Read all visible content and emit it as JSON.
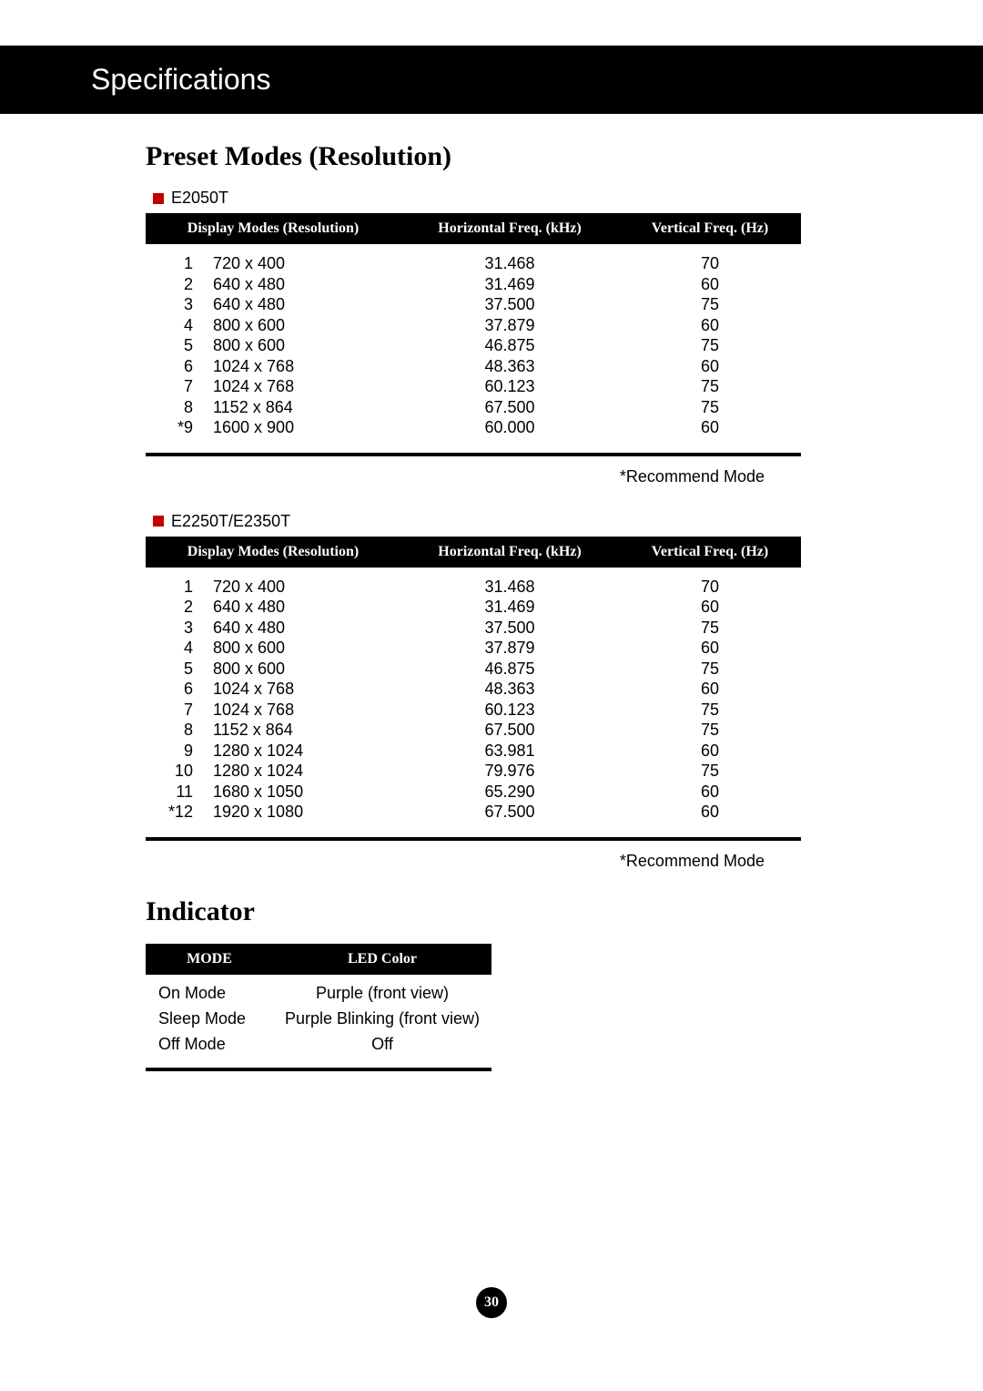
{
  "header": {
    "title": "Specifications"
  },
  "preset_modes": {
    "heading": "Preset Modes (Resolution)",
    "recommend_note": "*Recommend Mode",
    "columns": {
      "display": "Display Modes (Resolution)",
      "hfreq": "Horizontal Freq. (kHz)",
      "vfreq": "Vertical Freq. (Hz)"
    },
    "tables": [
      {
        "model": "E2050T",
        "rows": [
          {
            "idx": "1",
            "res": "720 x 400",
            "hfreq": "31.468",
            "vfreq": "70"
          },
          {
            "idx": "2",
            "res": "640 x 480",
            "hfreq": "31.469",
            "vfreq": "60"
          },
          {
            "idx": "3",
            "res": "640 x 480",
            "hfreq": "37.500",
            "vfreq": "75"
          },
          {
            "idx": "4",
            "res": "800 x 600",
            "hfreq": "37.879",
            "vfreq": "60"
          },
          {
            "idx": "5",
            "res": "800 x 600",
            "hfreq": "46.875",
            "vfreq": "75"
          },
          {
            "idx": "6",
            "res": "1024 x 768",
            "hfreq": "48.363",
            "vfreq": "60"
          },
          {
            "idx": "7",
            "res": "1024 x 768",
            "hfreq": "60.123",
            "vfreq": "75"
          },
          {
            "idx": "8",
            "res": "1152 x 864",
            "hfreq": "67.500",
            "vfreq": "75"
          },
          {
            "idx": "*9",
            "res": "1600 x 900",
            "hfreq": "60.000",
            "vfreq": "60"
          }
        ]
      },
      {
        "model": "E2250T/E2350T",
        "rows": [
          {
            "idx": "1",
            "res": "720 x 400",
            "hfreq": "31.468",
            "vfreq": "70"
          },
          {
            "idx": "2",
            "res": "640 x 480",
            "hfreq": "31.469",
            "vfreq": "60"
          },
          {
            "idx": "3",
            "res": "640 x 480",
            "hfreq": "37.500",
            "vfreq": "75"
          },
          {
            "idx": "4",
            "res": "800 x 600",
            "hfreq": "37.879",
            "vfreq": "60"
          },
          {
            "idx": "5",
            "res": "800 x 600",
            "hfreq": "46.875",
            "vfreq": "75"
          },
          {
            "idx": "6",
            "res": "1024 x 768",
            "hfreq": "48.363",
            "vfreq": "60"
          },
          {
            "idx": "7",
            "res": "1024 x 768",
            "hfreq": "60.123",
            "vfreq": "75"
          },
          {
            "idx": "8",
            "res": "1152 x 864",
            "hfreq": "67.500",
            "vfreq": "75"
          },
          {
            "idx": "9",
            "res": "1280 x 1024",
            "hfreq": "63.981",
            "vfreq": "60"
          },
          {
            "idx": "10",
            "res": "1280 x 1024",
            "hfreq": "79.976",
            "vfreq": "75"
          },
          {
            "idx": "11",
            "res": "1680 x 1050",
            "hfreq": "65.290",
            "vfreq": "60"
          },
          {
            "idx": "*12",
            "res": "1920 x 1080",
            "hfreq": "67.500",
            "vfreq": "60"
          }
        ]
      }
    ]
  },
  "indicator": {
    "heading": "Indicator",
    "columns": {
      "mode": "MODE",
      "color": "LED Color"
    },
    "rows": [
      {
        "mode": "On Mode",
        "color": "Purple (front view)"
      },
      {
        "mode": "Sleep Mode",
        "color": "Purple Blinking (front view)"
      },
      {
        "mode": "Off Mode",
        "color": "Off"
      }
    ]
  },
  "page_number": "30",
  "colors": {
    "bullet": "#c00000",
    "header_bg": "#000000",
    "header_fg": "#ffffff",
    "page_bg": "#ffffff",
    "text": "#000000"
  }
}
